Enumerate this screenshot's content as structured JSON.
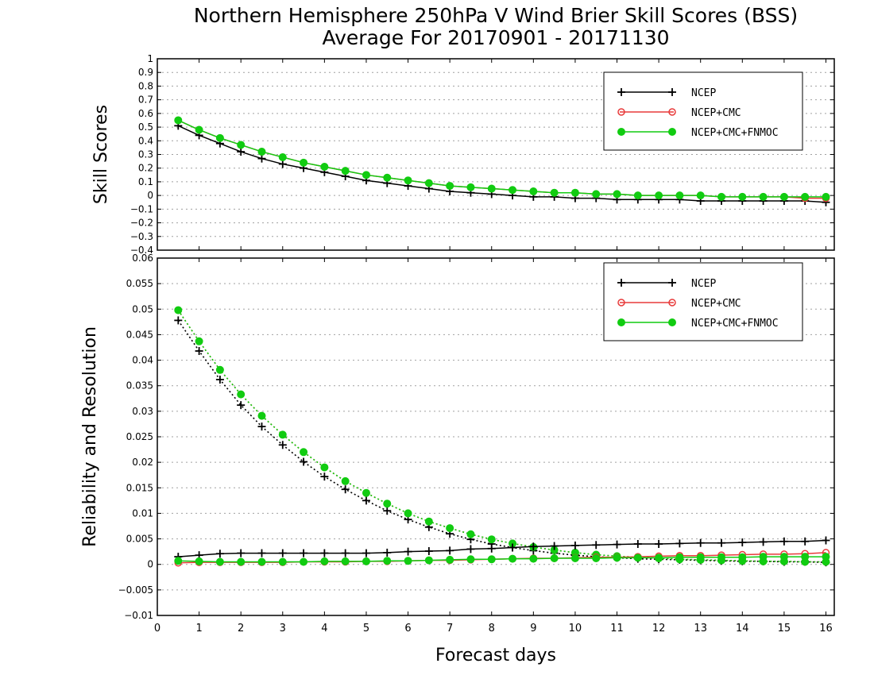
{
  "title_line1": "Northern Hemisphere 250hPa V Wind Brier Skill Scores (BSS)",
  "title_line2": "Average For 20170901 - 20171130",
  "xlabel": "Forecast days",
  "colors": {
    "NCEP": "#000000",
    "NCEP+CMC": "#e83a3a",
    "NCEP+CMC+FNMOC": "#11cc11"
  },
  "chart_data": [
    {
      "type": "line",
      "ylabel": "Skill Scores",
      "xlim": [
        0,
        16.2
      ],
      "ylim": [
        -0.4,
        1
      ],
      "xticks": [
        0,
        1,
        2,
        3,
        4,
        5,
        6,
        7,
        8,
        9,
        10,
        11,
        12,
        13,
        14,
        15,
        16
      ],
      "yticks": [
        "−0.4",
        "−0.3",
        "−0.2",
        "−0.1",
        "0",
        "0.1",
        "0.2",
        "0.3",
        "0.4",
        "0.5",
        "0.6",
        "0.7",
        "0.8",
        "0.9",
        "1"
      ],
      "ytick_values": [
        -0.4,
        -0.3,
        -0.2,
        -0.1,
        0,
        0.1,
        0.2,
        0.3,
        0.4,
        0.5,
        0.6,
        0.7,
        0.8,
        0.9,
        1
      ],
      "grid": true,
      "legend": "top-right",
      "x": [
        0.5,
        1,
        1.5,
        2,
        2.5,
        3,
        3.5,
        4,
        4.5,
        5,
        5.5,
        6,
        6.5,
        7,
        7.5,
        8,
        8.5,
        9,
        9.5,
        10,
        10.5,
        11,
        11.5,
        12,
        12.5,
        13,
        13.5,
        14,
        14.5,
        15,
        15.5,
        16
      ],
      "series": [
        {
          "name": "NCEP",
          "marker": "plus",
          "style": "solid",
          "values": [
            0.51,
            0.44,
            0.38,
            0.32,
            0.27,
            0.23,
            0.2,
            0.17,
            0.14,
            0.11,
            0.09,
            0.07,
            0.05,
            0.03,
            0.02,
            0.01,
            0.0,
            -0.01,
            -0.01,
            -0.02,
            -0.02,
            -0.03,
            -0.03,
            -0.03,
            -0.03,
            -0.04,
            -0.04,
            -0.04,
            -0.04,
            -0.04,
            -0.04,
            -0.05
          ]
        },
        {
          "name": "NCEP+CMC",
          "marker": "open-circle",
          "style": "solid",
          "values": [
            0.55,
            0.48,
            0.42,
            0.37,
            0.32,
            0.28,
            0.24,
            0.21,
            0.18,
            0.15,
            0.13,
            0.11,
            0.09,
            0.07,
            0.06,
            0.05,
            0.04,
            0.03,
            0.02,
            0.02,
            0.01,
            0.01,
            0.0,
            0.0,
            0.0,
            0.0,
            -0.01,
            -0.01,
            -0.01,
            -0.01,
            -0.02,
            -0.02
          ]
        },
        {
          "name": "NCEP+CMC+FNMOC",
          "marker": "filled-circle",
          "style": "solid",
          "values": [
            0.55,
            0.48,
            0.42,
            0.37,
            0.32,
            0.28,
            0.24,
            0.21,
            0.18,
            0.15,
            0.13,
            0.11,
            0.09,
            0.07,
            0.06,
            0.05,
            0.04,
            0.03,
            0.02,
            0.02,
            0.01,
            0.01,
            0.0,
            0.0,
            0.0,
            0.0,
            -0.01,
            -0.01,
            -0.01,
            -0.01,
            -0.01,
            -0.01
          ]
        }
      ]
    },
    {
      "type": "line",
      "ylabel": "Reliability and Resolution",
      "xlim": [
        0,
        16.2
      ],
      "ylim": [
        -0.01,
        0.06
      ],
      "xticks": [
        0,
        1,
        2,
        3,
        4,
        5,
        6,
        7,
        8,
        9,
        10,
        11,
        12,
        13,
        14,
        15,
        16
      ],
      "yticks": [
        "−0.01",
        "−0.005",
        "0",
        "0.005",
        "0.01",
        "0.015",
        "0.02",
        "0.025",
        "0.03",
        "0.035",
        "0.04",
        "0.045",
        "0.05",
        "0.055",
        "0.06"
      ],
      "ytick_values": [
        -0.01,
        -0.005,
        0,
        0.005,
        0.01,
        0.015,
        0.02,
        0.025,
        0.03,
        0.035,
        0.04,
        0.045,
        0.05,
        0.055,
        0.06
      ],
      "grid": true,
      "legend": "top-right",
      "x": [
        0.5,
        1,
        1.5,
        2,
        2.5,
        3,
        3.5,
        4,
        4.5,
        5,
        5.5,
        6,
        6.5,
        7,
        7.5,
        8,
        8.5,
        9,
        9.5,
        10,
        10.5,
        11,
        11.5,
        12,
        12.5,
        13,
        13.5,
        14,
        14.5,
        15,
        15.5,
        16
      ],
      "series": [
        {
          "name": "NCEP",
          "metric": "resolution",
          "marker": "plus",
          "style": "dotted",
          "values": [
            0.0478,
            0.0418,
            0.0362,
            0.0312,
            0.027,
            0.0234,
            0.0201,
            0.0172,
            0.0147,
            0.0125,
            0.0105,
            0.0088,
            0.0073,
            0.006,
            0.0049,
            0.004,
            0.0033,
            0.0027,
            0.0022,
            0.0018,
            0.0015,
            0.0013,
            0.0011,
            0.001,
            0.0009,
            0.0008,
            0.0007,
            0.0006,
            0.0006,
            0.0005,
            0.0005,
            0.0004
          ]
        },
        {
          "name": "NCEP+CMC",
          "metric": "resolution",
          "marker": "open-circle",
          "style": "dotted",
          "values": [
            0.0498,
            0.0437,
            0.0381,
            0.0333,
            0.0291,
            0.0254,
            0.022,
            0.019,
            0.0163,
            0.014,
            0.0119,
            0.01,
            0.0084,
            0.0071,
            0.0059,
            0.0049,
            0.0041,
            0.0034,
            0.0028,
            0.0023,
            0.0019,
            0.0016,
            0.0014,
            0.0012,
            0.001,
            0.0009,
            0.0008,
            0.0007,
            0.0006,
            0.0006,
            0.0005,
            0.0005
          ]
        },
        {
          "name": "NCEP+CMC+FNMOC",
          "metric": "resolution",
          "marker": "filled-circle",
          "style": "dotted",
          "values": [
            0.0498,
            0.0437,
            0.0381,
            0.0333,
            0.0291,
            0.0254,
            0.022,
            0.019,
            0.0163,
            0.014,
            0.0119,
            0.01,
            0.0084,
            0.0071,
            0.0059,
            0.0049,
            0.0041,
            0.0034,
            0.0028,
            0.0023,
            0.0019,
            0.0016,
            0.0014,
            0.0012,
            0.001,
            0.0009,
            0.0008,
            0.0007,
            0.0006,
            0.0006,
            0.0005,
            0.0005
          ]
        },
        {
          "name": "NCEP",
          "metric": "reliability",
          "marker": "plus",
          "style": "solid",
          "values": [
            0.0015,
            0.0018,
            0.0021,
            0.0022,
            0.0022,
            0.0022,
            0.0022,
            0.0022,
            0.0022,
            0.0022,
            0.0023,
            0.0025,
            0.0026,
            0.0027,
            0.003,
            0.0031,
            0.0033,
            0.0035,
            0.0036,
            0.0037,
            0.0038,
            0.0039,
            0.004,
            0.004,
            0.0041,
            0.0042,
            0.0042,
            0.0043,
            0.0044,
            0.0045,
            0.0045,
            0.0047
          ]
        },
        {
          "name": "NCEP+CMC",
          "metric": "reliability",
          "marker": "open-circle",
          "style": "solid",
          "values": [
            0.0003,
            0.0004,
            0.0004,
            0.0004,
            0.0004,
            0.0004,
            0.0005,
            0.0005,
            0.0005,
            0.0006,
            0.0006,
            0.0007,
            0.0008,
            0.0008,
            0.0009,
            0.001,
            0.0011,
            0.0012,
            0.0012,
            0.0013,
            0.0014,
            0.0014,
            0.0015,
            0.0016,
            0.0017,
            0.0017,
            0.0018,
            0.0019,
            0.002,
            0.002,
            0.0021,
            0.0023
          ]
        },
        {
          "name": "NCEP+CMC+FNMOC",
          "metric": "reliability",
          "marker": "filled-circle",
          "style": "solid",
          "values": [
            0.0007,
            0.0006,
            0.0005,
            0.0005,
            0.0005,
            0.0005,
            0.0005,
            0.0006,
            0.0006,
            0.0006,
            0.0007,
            0.0007,
            0.0008,
            0.0009,
            0.001,
            0.001,
            0.0011,
            0.0011,
            0.0012,
            0.0012,
            0.0012,
            0.0013,
            0.0013,
            0.0013,
            0.0014,
            0.0014,
            0.0014,
            0.0014,
            0.0015,
            0.0015,
            0.0015,
            0.0015
          ]
        }
      ]
    }
  ]
}
